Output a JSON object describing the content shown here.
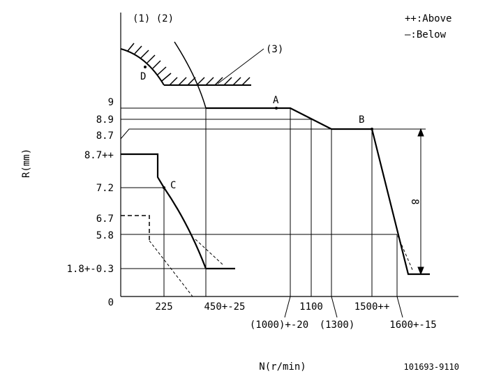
{
  "header": {
    "curve_labels": "(1) (2)",
    "legend_above": "++:Above",
    "legend_below": "—:Below"
  },
  "y_axis": {
    "label": "R(mm)",
    "ticks": [
      "9",
      "8.9",
      "8.7",
      "8.7++",
      "7.2",
      "6.7",
      "5.8",
      "1.8+-0.3",
      "0"
    ]
  },
  "x_axis": {
    "label": "N(r/min)",
    "ticks": [
      "225",
      "450+-25",
      "1100",
      "1500++",
      "(1000)+-20",
      "(1300)",
      "1600+-15"
    ]
  },
  "points": {
    "a": "A",
    "b": "B",
    "c": "C",
    "d": "D"
  },
  "callouts": {
    "three": "(3)",
    "eight": "8"
  },
  "figure_id": "101693-9110"
}
